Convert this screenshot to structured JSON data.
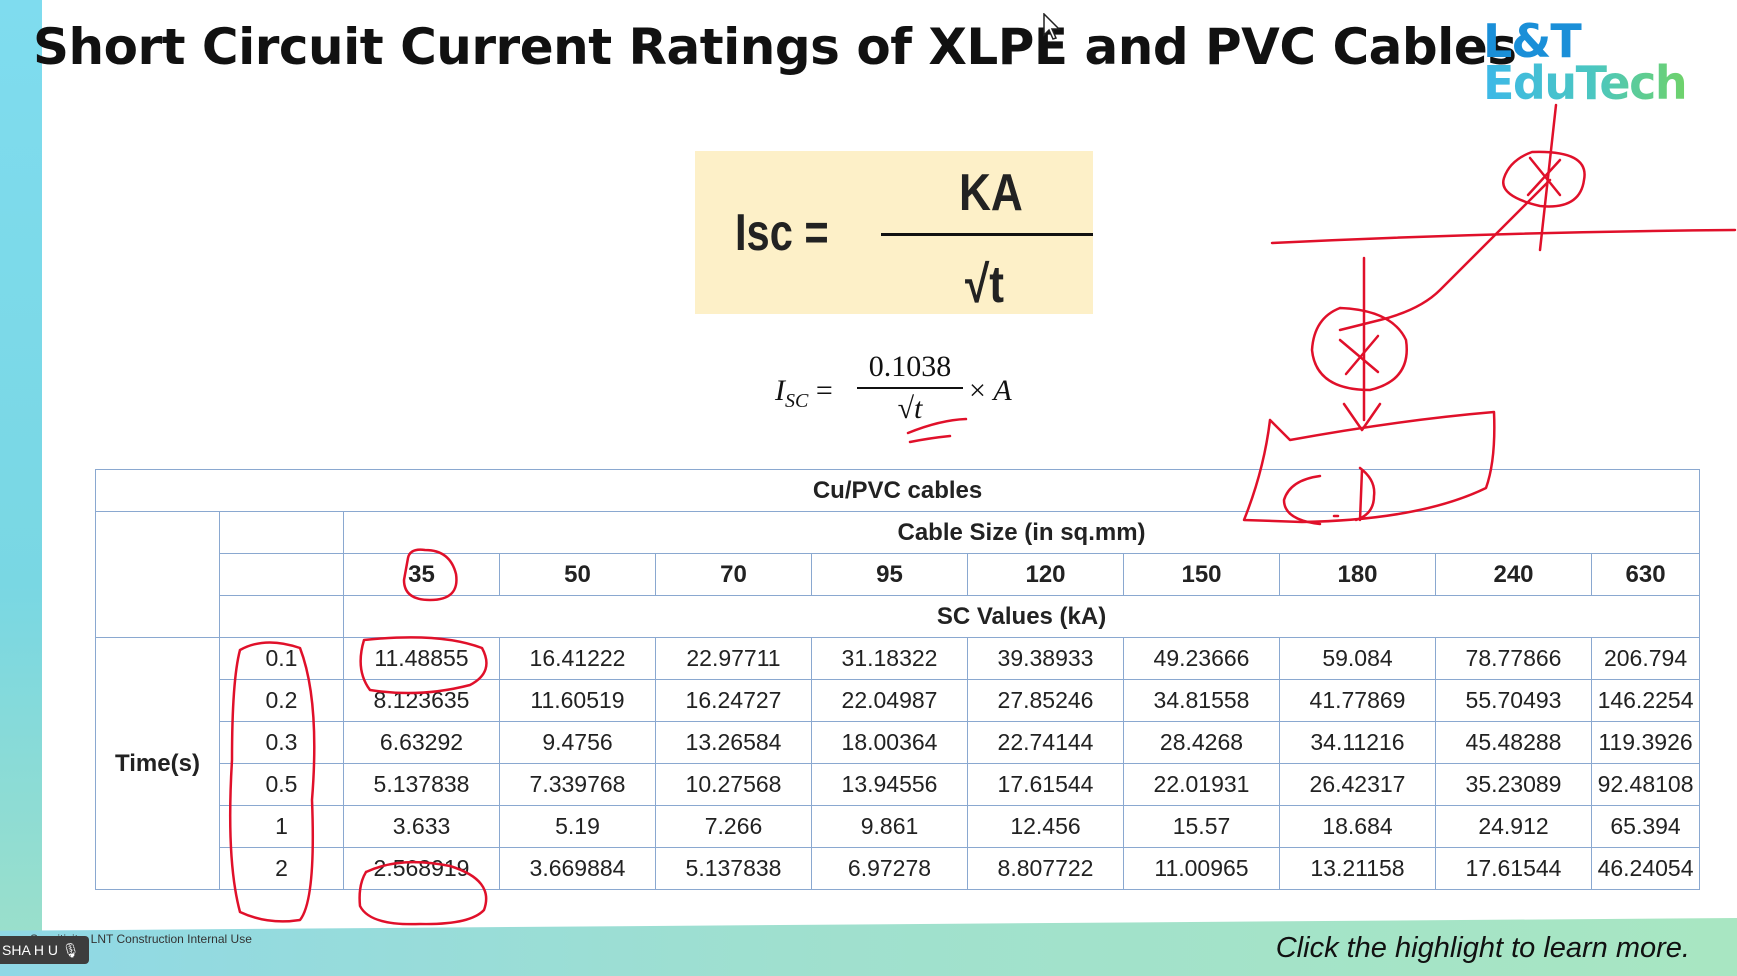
{
  "title": "Short Circuit Current Ratings of XLPE and PVC Cables",
  "logo": {
    "line1": "L&T",
    "line2": "EduTech"
  },
  "formula_box": {
    "lhs": "Isc =",
    "numerator": "KA",
    "denominator": "√t"
  },
  "formula2": {
    "lhs_main": "I",
    "lhs_sub": "SC",
    "equals": "=",
    "numerator": "0.1038",
    "denominator": "√t",
    "rhs_times": "×",
    "rhs_var": "A"
  },
  "table": {
    "caption": "Cu/PVC cables",
    "cable_size_header": "Cable Size (in sq.mm)",
    "sizes": [
      "35",
      "50",
      "70",
      "95",
      "120",
      "150",
      "180",
      "240",
      "630"
    ],
    "sc_header": "SC Values (kA)",
    "time_label": "Time(s)",
    "rows": [
      {
        "time": "0.1",
        "values": [
          "11.48855",
          "16.41222",
          "22.97711",
          "31.18322",
          "39.38933",
          "49.23666",
          "59.084",
          "78.77866",
          "206.794"
        ]
      },
      {
        "time": "0.2",
        "values": [
          "8.123635",
          "11.60519",
          "16.24727",
          "22.04987",
          "27.85246",
          "34.81558",
          "41.77869",
          "55.70493",
          "146.2254"
        ]
      },
      {
        "time": "0.3",
        "values": [
          "6.63292",
          "9.4756",
          "13.26584",
          "18.00364",
          "22.74144",
          "28.4268",
          "34.11216",
          "45.48288",
          "119.3926"
        ]
      },
      {
        "time": "0.5",
        "values": [
          "5.137838",
          "7.339768",
          "10.27568",
          "13.94556",
          "17.61544",
          "22.01931",
          "26.42317",
          "35.23089",
          "92.48108"
        ]
      },
      {
        "time": "1",
        "values": [
          "3.633",
          "5.19",
          "7.266",
          "9.861",
          "12.456",
          "15.57",
          "18.684",
          "24.912",
          "65.394"
        ]
      },
      {
        "time": "2",
        "values": [
          "2.568919",
          "3.669884",
          "5.137838",
          "6.97278",
          "8.807722",
          "11.00965",
          "13.21158",
          "17.61544",
          "46.24054"
        ]
      }
    ]
  },
  "footer": {
    "sensitivity": "Sensitivity: LNT Construction Internal Use",
    "presenter": "SHA H U",
    "cta": "Click the highlight to learn more."
  },
  "colors": {
    "annotation": "#e0102a",
    "table_border": "#8aa8d0",
    "formula_bg": "#fdf0c8",
    "logo_blue": "#1a8fd8",
    "logo_green": "#6fd26a"
  }
}
